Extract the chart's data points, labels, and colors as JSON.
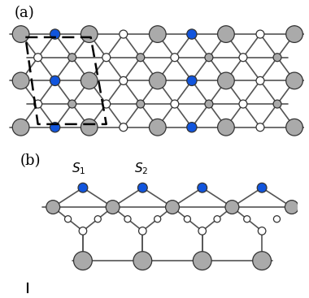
{
  "fig_width": 3.8,
  "fig_height": 3.67,
  "dpi": 100,
  "bg_color": "#ffffff",
  "gray_color": "#aaaaaa",
  "blue_color": "#1155dd",
  "white_color": "#ffffff",
  "bond_color": "#555555",
  "edge_color": "#333333",
  "label_a": "(a)",
  "label_b": "(b)",
  "R_GL": 0.27,
  "R_B": 0.16,
  "R_W": 0.13,
  "R_GS": 0.13,
  "bond_lw": 1.2,
  "dashed_lw": 2.0
}
